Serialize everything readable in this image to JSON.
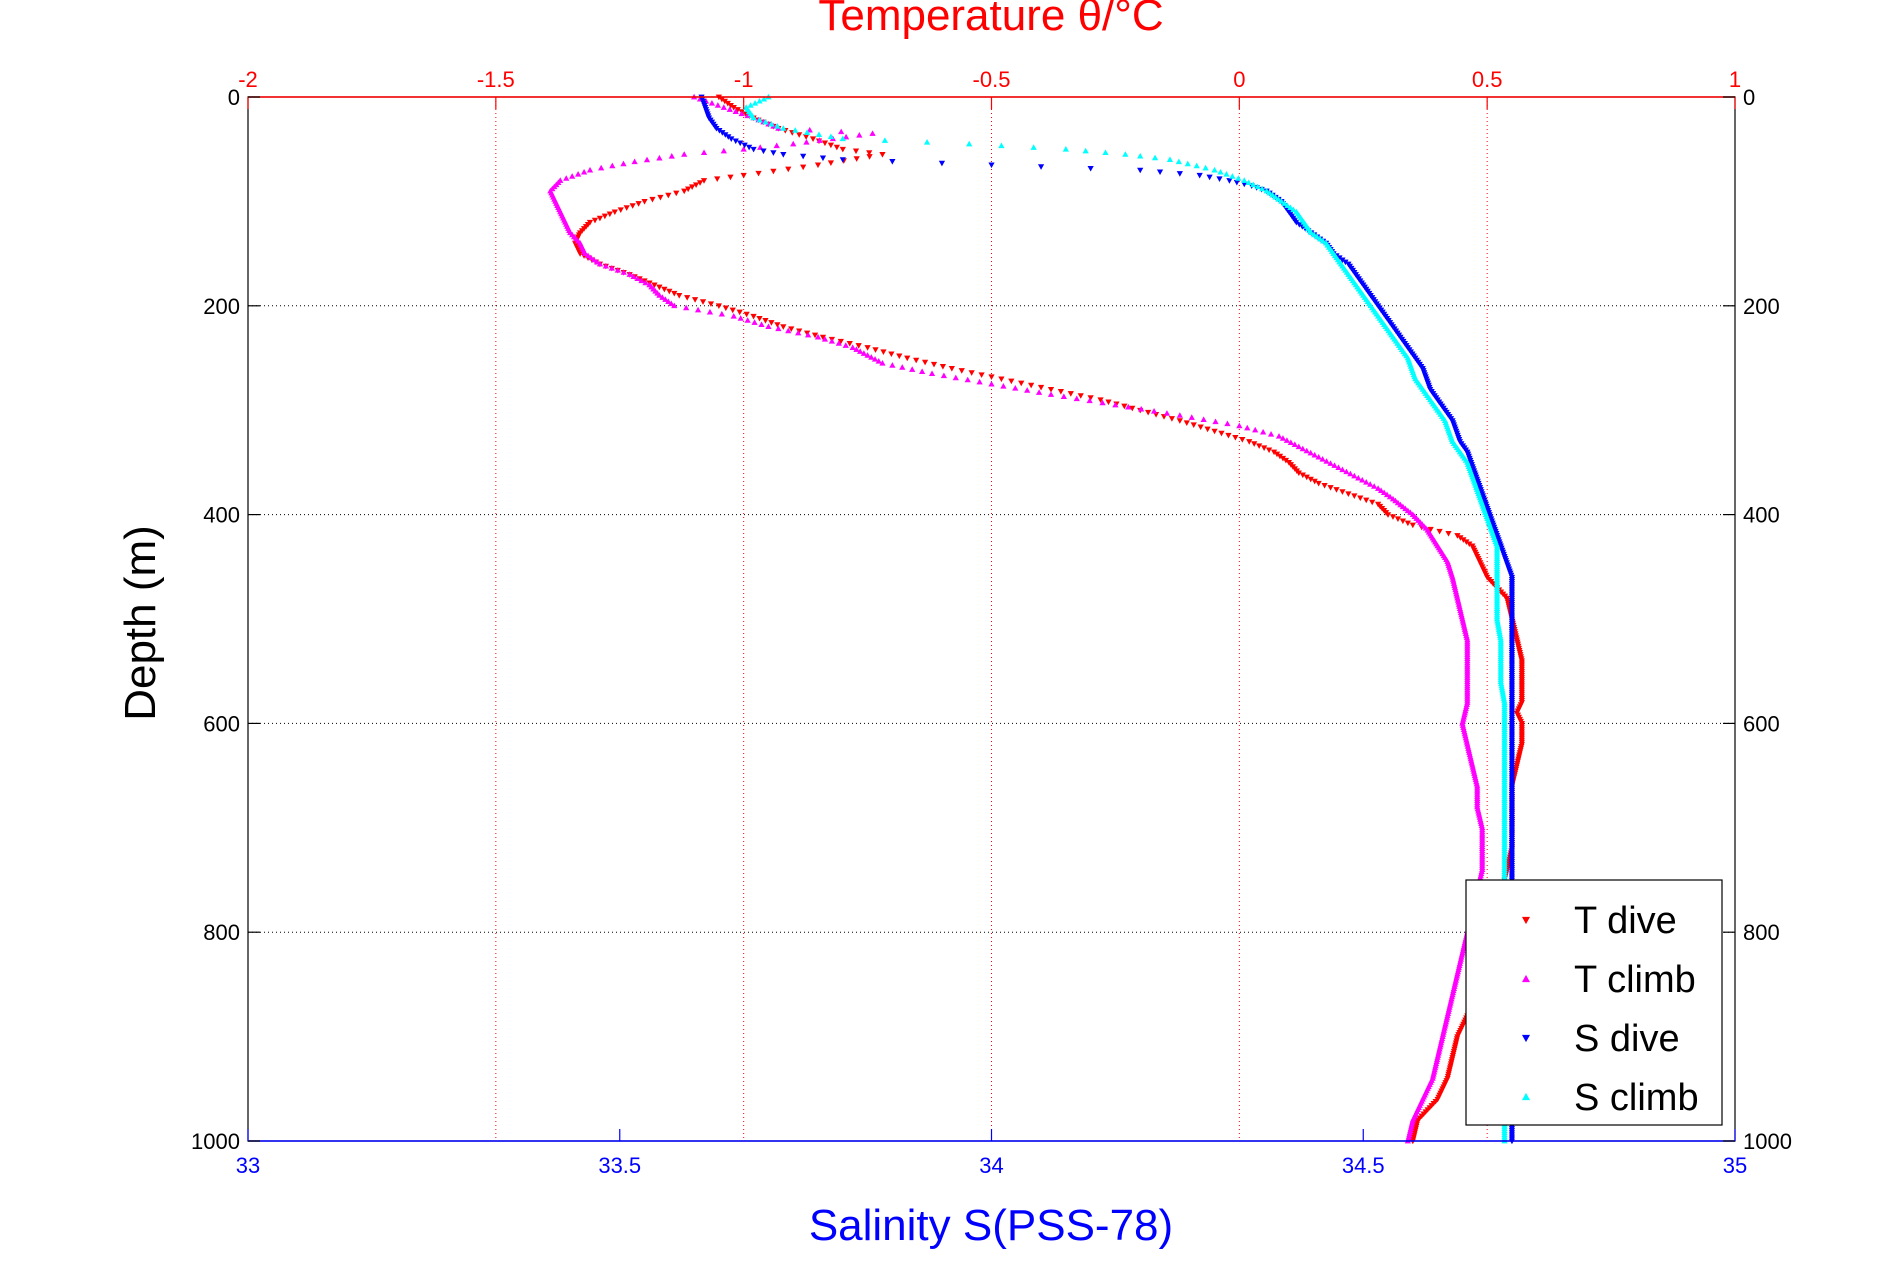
{
  "chart_data": {
    "type": "scatter",
    "top_axis": {
      "label": "Temperature θ/°C",
      "range": [
        -2,
        1
      ],
      "ticks": [
        -2,
        -1.5,
        -1,
        -0.5,
        0,
        0.5,
        1
      ],
      "tick_labels": [
        "-2",
        "-1.5",
        "-1",
        "-0.5",
        "0",
        "0.5",
        "1"
      ],
      "color": "#ff0000",
      "grid": true
    },
    "bottom_axis": {
      "label": "Salinity S(PSS-78)",
      "range": [
        33,
        35
      ],
      "ticks": [
        33,
        33.5,
        34,
        34.5,
        35
      ],
      "tick_labels": [
        "33",
        "33.5",
        "34",
        "34.5",
        "35"
      ],
      "color": "#0000ff",
      "grid": false
    },
    "y_axis": {
      "label": "Depth (m)",
      "range": [
        0,
        1000
      ],
      "reversed": true,
      "ticks": [
        0,
        200,
        400,
        600,
        800,
        1000
      ],
      "tick_labels": [
        "0",
        "200",
        "400",
        "600",
        "800",
        "1000"
      ],
      "grid": true
    },
    "legend_position": "bottom-right",
    "series": [
      {
        "name": "T dive",
        "axis": "temperature",
        "color": "#ff0000",
        "marker": "triangle-down",
        "points": [
          [
            -1.05,
            0
          ],
          [
            -1.02,
            10
          ],
          [
            -0.98,
            20
          ],
          [
            -0.93,
            30
          ],
          [
            -0.86,
            40
          ],
          [
            -0.8,
            50
          ],
          [
            -0.72,
            55
          ],
          [
            -0.85,
            65
          ],
          [
            -1.0,
            75
          ],
          [
            -1.08,
            80
          ],
          [
            -1.12,
            90
          ],
          [
            -1.2,
            100
          ],
          [
            -1.26,
            110
          ],
          [
            -1.31,
            120
          ],
          [
            -1.33,
            130
          ],
          [
            -1.34,
            140
          ],
          [
            -1.33,
            150
          ],
          [
            -1.29,
            160
          ],
          [
            -1.23,
            170
          ],
          [
            -1.18,
            180
          ],
          [
            -1.13,
            190
          ],
          [
            -1.05,
            200
          ],
          [
            -0.98,
            210
          ],
          [
            -0.92,
            220
          ],
          [
            -0.84,
            230
          ],
          [
            -0.75,
            240
          ],
          [
            -0.67,
            250
          ],
          [
            -0.58,
            260
          ],
          [
            -0.48,
            270
          ],
          [
            -0.38,
            280
          ],
          [
            -0.28,
            290
          ],
          [
            -0.2,
            300
          ],
          [
            -0.12,
            310
          ],
          [
            -0.05,
            320
          ],
          [
            0.02,
            330
          ],
          [
            0.07,
            340
          ],
          [
            0.1,
            350
          ],
          [
            0.12,
            360
          ],
          [
            0.16,
            370
          ],
          [
            0.22,
            380
          ],
          [
            0.28,
            390
          ],
          [
            0.3,
            400
          ],
          [
            0.35,
            410
          ],
          [
            0.44,
            420
          ],
          [
            0.47,
            430
          ],
          [
            0.48,
            440
          ],
          [
            0.49,
            450
          ],
          [
            0.5,
            460
          ],
          [
            0.52,
            470
          ],
          [
            0.54,
            480
          ],
          [
            0.55,
            500
          ],
          [
            0.56,
            520
          ],
          [
            0.57,
            540
          ],
          [
            0.57,
            560
          ],
          [
            0.57,
            580
          ],
          [
            0.56,
            590
          ],
          [
            0.57,
            600
          ],
          [
            0.57,
            620
          ],
          [
            0.56,
            640
          ],
          [
            0.55,
            660
          ],
          [
            0.55,
            680
          ],
          [
            0.55,
            700
          ],
          [
            0.55,
            720
          ],
          [
            0.54,
            740
          ],
          [
            0.53,
            760
          ],
          [
            0.52,
            780
          ],
          [
            0.51,
            800
          ],
          [
            0.5,
            820
          ],
          [
            0.49,
            840
          ],
          [
            0.48,
            860
          ],
          [
            0.46,
            880
          ],
          [
            0.44,
            900
          ],
          [
            0.43,
            920
          ],
          [
            0.42,
            940
          ],
          [
            0.4,
            960
          ],
          [
            0.36,
            980
          ],
          [
            0.35,
            1000
          ]
        ]
      },
      {
        "name": "T climb",
        "axis": "temperature",
        "color": "#ff00ff",
        "marker": "triangle-up",
        "points": [
          [
            -1.1,
            0
          ],
          [
            -1.04,
            10
          ],
          [
            -0.98,
            20
          ],
          [
            -0.93,
            30
          ],
          [
            -0.74,
            35
          ],
          [
            -0.82,
            40
          ],
          [
            -0.9,
            45
          ],
          [
            -1.0,
            50
          ],
          [
            -1.12,
            55
          ],
          [
            -1.22,
            62
          ],
          [
            -1.31,
            70
          ],
          [
            -1.37,
            80
          ],
          [
            -1.39,
            90
          ],
          [
            -1.38,
            100
          ],
          [
            -1.37,
            110
          ],
          [
            -1.36,
            120
          ],
          [
            -1.35,
            130
          ],
          [
            -1.33,
            140
          ],
          [
            -1.32,
            150
          ],
          [
            -1.29,
            160
          ],
          [
            -1.23,
            170
          ],
          [
            -1.19,
            180
          ],
          [
            -1.17,
            190
          ],
          [
            -1.14,
            200
          ],
          [
            -1.02,
            210
          ],
          [
            -0.95,
            220
          ],
          [
            -0.85,
            230
          ],
          [
            -0.78,
            240
          ],
          [
            -0.72,
            255
          ],
          [
            -0.62,
            265
          ],
          [
            -0.5,
            275
          ],
          [
            -0.38,
            285
          ],
          [
            -0.25,
            295
          ],
          [
            -0.12,
            305
          ],
          [
            0.0,
            315
          ],
          [
            0.08,
            325
          ],
          [
            0.12,
            335
          ],
          [
            0.16,
            345
          ],
          [
            0.2,
            355
          ],
          [
            0.24,
            365
          ],
          [
            0.28,
            375
          ],
          [
            0.31,
            385
          ],
          [
            0.35,
            400
          ],
          [
            0.38,
            415
          ],
          [
            0.4,
            430
          ],
          [
            0.42,
            445
          ],
          [
            0.43,
            460
          ],
          [
            0.44,
            480
          ],
          [
            0.45,
            500
          ],
          [
            0.46,
            520
          ],
          [
            0.46,
            540
          ],
          [
            0.46,
            560
          ],
          [
            0.46,
            580
          ],
          [
            0.45,
            600
          ],
          [
            0.46,
            620
          ],
          [
            0.47,
            640
          ],
          [
            0.48,
            660
          ],
          [
            0.48,
            680
          ],
          [
            0.49,
            700
          ],
          [
            0.49,
            720
          ],
          [
            0.49,
            740
          ],
          [
            0.48,
            760
          ],
          [
            0.47,
            780
          ],
          [
            0.46,
            800
          ],
          [
            0.45,
            820
          ],
          [
            0.44,
            840
          ],
          [
            0.43,
            860
          ],
          [
            0.42,
            880
          ],
          [
            0.41,
            900
          ],
          [
            0.4,
            920
          ],
          [
            0.39,
            940
          ],
          [
            0.37,
            960
          ],
          [
            0.35,
            980
          ],
          [
            0.34,
            1000
          ]
        ]
      },
      {
        "name": "S dive",
        "axis": "salinity",
        "color": "#0000ff",
        "marker": "triangle-down",
        "points": [
          [
            33.61,
            0
          ],
          [
            33.615,
            10
          ],
          [
            33.62,
            20
          ],
          [
            33.63,
            30
          ],
          [
            33.65,
            40
          ],
          [
            33.68,
            50
          ],
          [
            33.72,
            55
          ],
          [
            33.8,
            60
          ],
          [
            34.0,
            65
          ],
          [
            34.2,
            70
          ],
          [
            34.28,
            75
          ],
          [
            34.32,
            80
          ],
          [
            34.35,
            85
          ],
          [
            34.37,
            90
          ],
          [
            34.39,
            100
          ],
          [
            34.4,
            110
          ],
          [
            34.41,
            120
          ],
          [
            34.43,
            130
          ],
          [
            34.45,
            140
          ],
          [
            34.46,
            150
          ],
          [
            34.48,
            160
          ],
          [
            34.49,
            170
          ],
          [
            34.5,
            180
          ],
          [
            34.51,
            190
          ],
          [
            34.52,
            200
          ],
          [
            34.53,
            210
          ],
          [
            34.54,
            220
          ],
          [
            34.55,
            230
          ],
          [
            34.56,
            240
          ],
          [
            34.57,
            250
          ],
          [
            34.58,
            260
          ],
          [
            34.585,
            270
          ],
          [
            34.59,
            280
          ],
          [
            34.6,
            290
          ],
          [
            34.61,
            300
          ],
          [
            34.62,
            310
          ],
          [
            34.625,
            320
          ],
          [
            34.63,
            330
          ],
          [
            34.64,
            340
          ],
          [
            34.645,
            350
          ],
          [
            34.65,
            360
          ],
          [
            34.655,
            370
          ],
          [
            34.66,
            380
          ],
          [
            34.665,
            390
          ],
          [
            34.67,
            400
          ],
          [
            34.675,
            410
          ],
          [
            34.68,
            420
          ],
          [
            34.685,
            430
          ],
          [
            34.69,
            440
          ],
          [
            34.695,
            450
          ],
          [
            34.7,
            460
          ],
          [
            34.7,
            480
          ],
          [
            34.7,
            500
          ],
          [
            34.7,
            520
          ],
          [
            34.7,
            540
          ],
          [
            34.7,
            560
          ],
          [
            34.7,
            580
          ],
          [
            34.7,
            600
          ],
          [
            34.7,
            620
          ],
          [
            34.7,
            640
          ],
          [
            34.7,
            660
          ],
          [
            34.7,
            680
          ],
          [
            34.7,
            700
          ],
          [
            34.7,
            720
          ],
          [
            34.7,
            740
          ],
          [
            34.7,
            760
          ],
          [
            34.7,
            780
          ],
          [
            34.7,
            800
          ],
          [
            34.7,
            820
          ],
          [
            34.7,
            840
          ],
          [
            34.7,
            860
          ],
          [
            34.7,
            880
          ],
          [
            34.7,
            900
          ],
          [
            34.7,
            920
          ],
          [
            34.7,
            940
          ],
          [
            34.7,
            960
          ],
          [
            34.7,
            980
          ],
          [
            34.7,
            1000
          ]
        ]
      },
      {
        "name": "S climb",
        "axis": "salinity",
        "color": "#00ffff",
        "marker": "triangle-up",
        "points": [
          [
            33.7,
            0
          ],
          [
            33.67,
            10
          ],
          [
            33.68,
            20
          ],
          [
            33.72,
            30
          ],
          [
            33.8,
            40
          ],
          [
            33.97,
            45
          ],
          [
            34.1,
            50
          ],
          [
            34.18,
            55
          ],
          [
            34.24,
            60
          ],
          [
            34.3,
            70
          ],
          [
            34.34,
            80
          ],
          [
            34.37,
            90
          ],
          [
            34.39,
            100
          ],
          [
            34.41,
            110
          ],
          [
            34.42,
            120
          ],
          [
            34.43,
            130
          ],
          [
            34.45,
            140
          ],
          [
            34.46,
            150
          ],
          [
            34.47,
            160
          ],
          [
            34.48,
            170
          ],
          [
            34.49,
            180
          ],
          [
            34.5,
            190
          ],
          [
            34.51,
            200
          ],
          [
            34.52,
            210
          ],
          [
            34.53,
            220
          ],
          [
            34.54,
            230
          ],
          [
            34.55,
            240
          ],
          [
            34.56,
            250
          ],
          [
            34.565,
            260
          ],
          [
            34.57,
            270
          ],
          [
            34.58,
            280
          ],
          [
            34.59,
            290
          ],
          [
            34.6,
            300
          ],
          [
            34.61,
            310
          ],
          [
            34.615,
            320
          ],
          [
            34.62,
            330
          ],
          [
            34.63,
            340
          ],
          [
            34.64,
            350
          ],
          [
            34.645,
            360
          ],
          [
            34.65,
            370
          ],
          [
            34.655,
            380
          ],
          [
            34.66,
            390
          ],
          [
            34.665,
            400
          ],
          [
            34.67,
            410
          ],
          [
            34.675,
            420
          ],
          [
            34.68,
            430
          ],
          [
            34.68,
            440
          ],
          [
            34.68,
            460
          ],
          [
            34.68,
            480
          ],
          [
            34.68,
            500
          ],
          [
            34.685,
            520
          ],
          [
            34.685,
            540
          ],
          [
            34.685,
            560
          ],
          [
            34.69,
            580
          ],
          [
            34.69,
            600
          ],
          [
            34.69,
            620
          ],
          [
            34.69,
            640
          ],
          [
            34.69,
            660
          ],
          [
            34.69,
            680
          ],
          [
            34.69,
            700
          ],
          [
            34.69,
            720
          ],
          [
            34.69,
            740
          ],
          [
            34.69,
            760
          ],
          [
            34.69,
            780
          ],
          [
            34.69,
            800
          ],
          [
            34.69,
            820
          ],
          [
            34.69,
            840
          ],
          [
            34.69,
            860
          ],
          [
            34.69,
            880
          ],
          [
            34.69,
            900
          ],
          [
            34.69,
            920
          ],
          [
            34.69,
            940
          ],
          [
            34.69,
            960
          ],
          [
            34.69,
            980
          ],
          [
            34.69,
            1000
          ]
        ]
      }
    ]
  }
}
